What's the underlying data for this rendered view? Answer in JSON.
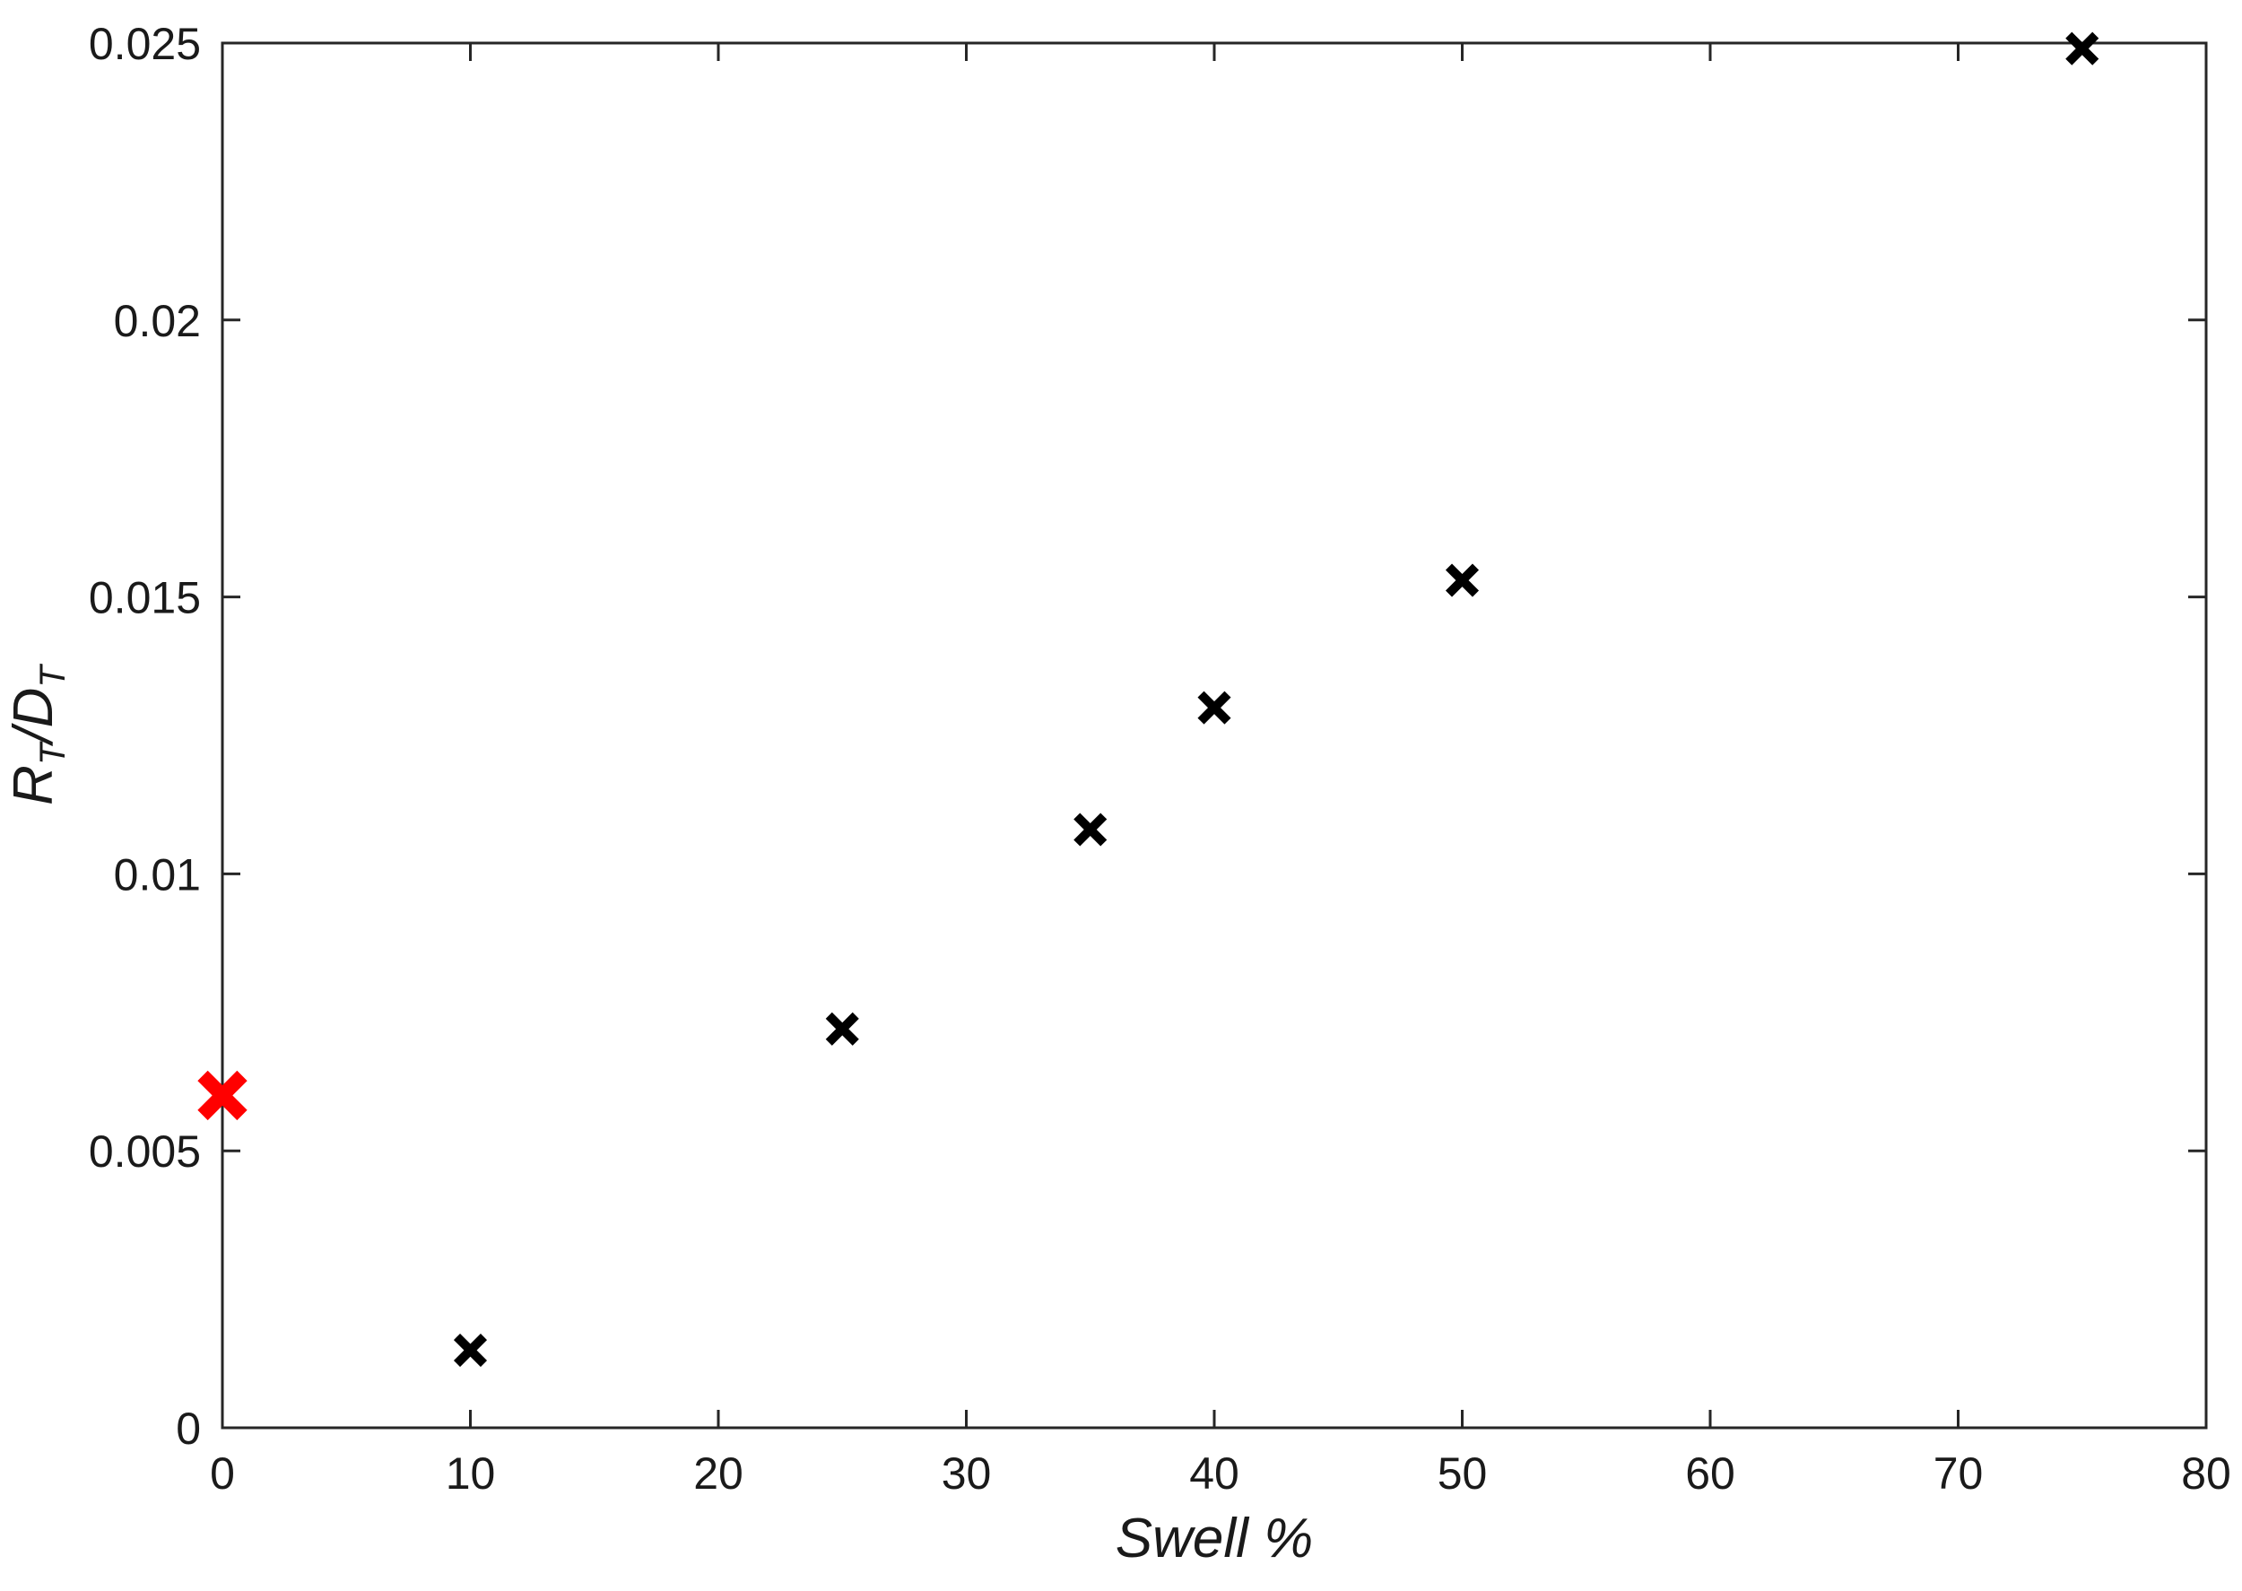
{
  "chart_data": {
    "type": "scatter",
    "xlabel": "Swell %",
    "ylabel": {
      "main_1": "R",
      "sub_1": "T",
      "separator": "/",
      "main_2": "D",
      "sub_2": "T"
    },
    "xlim": [
      0,
      80
    ],
    "ylim": [
      0,
      0.025
    ],
    "xticks": [
      0,
      10,
      20,
      30,
      40,
      50,
      60,
      70,
      80
    ],
    "xtick_labels": [
      "0",
      "10",
      "20",
      "30",
      "40",
      "50",
      "60",
      "70",
      "80"
    ],
    "yticks": [
      0,
      0.005,
      0.01,
      0.015,
      0.02,
      0.025
    ],
    "ytick_labels": [
      "0",
      "0.005",
      "0.01",
      "0.015",
      "0.02",
      "0.025"
    ],
    "grid": false,
    "legend": "none",
    "marker": "x",
    "series": [
      {
        "color": "#000000",
        "points": [
          {
            "x": 10,
            "y": 0.0014
          },
          {
            "x": 25,
            "y": 0.0072
          },
          {
            "x": 35,
            "y": 0.0108
          },
          {
            "x": 40,
            "y": 0.013
          },
          {
            "x": 50,
            "y": 0.0153
          },
          {
            "x": 75,
            "y": 0.0249
          }
        ]
      },
      {
        "color": "#ff0000",
        "points": [
          {
            "x": 0,
            "y": 0.006
          }
        ]
      }
    ]
  }
}
